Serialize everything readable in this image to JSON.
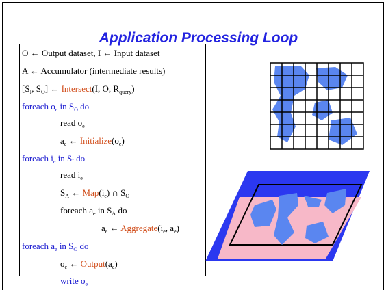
{
  "title": "Application Processing Loop",
  "code": [
    [
      "O ← Output dataset, I ← Input dataset"
    ],
    [
      "A ← Accumulator (intermediate results)"
    ],
    [
      "[S",
      "I",
      ", S",
      "O",
      "] ← ",
      "Intersect",
      "(I, O, R",
      "query",
      ")"
    ],
    [
      "foreach o",
      "e",
      " in S",
      "O",
      " do"
    ],
    [
      "read o",
      "e"
    ],
    [
      "a",
      "e",
      " ← ",
      "Initialize",
      "(o",
      "e",
      ")"
    ],
    [
      "foreach i",
      "e",
      " in S",
      "I",
      " do"
    ],
    [
      "read i",
      "e"
    ],
    [
      "S",
      "A",
      " ← ",
      "Map",
      "(i",
      "e",
      ") ∩ S",
      "O"
    ],
    [
      "foreach a",
      "e",
      " in S",
      "A",
      " do"
    ],
    [
      "a",
      "e",
      " ← ",
      "Aggregate",
      "(i",
      "e",
      ", a",
      "e",
      ")"
    ],
    [
      "foreach a",
      "e",
      " in S",
      "O",
      " do"
    ],
    [
      "o",
      "e",
      " ← ",
      "Output",
      "(a",
      "e",
      ")"
    ],
    [
      "write o",
      "e"
    ]
  ]
}
